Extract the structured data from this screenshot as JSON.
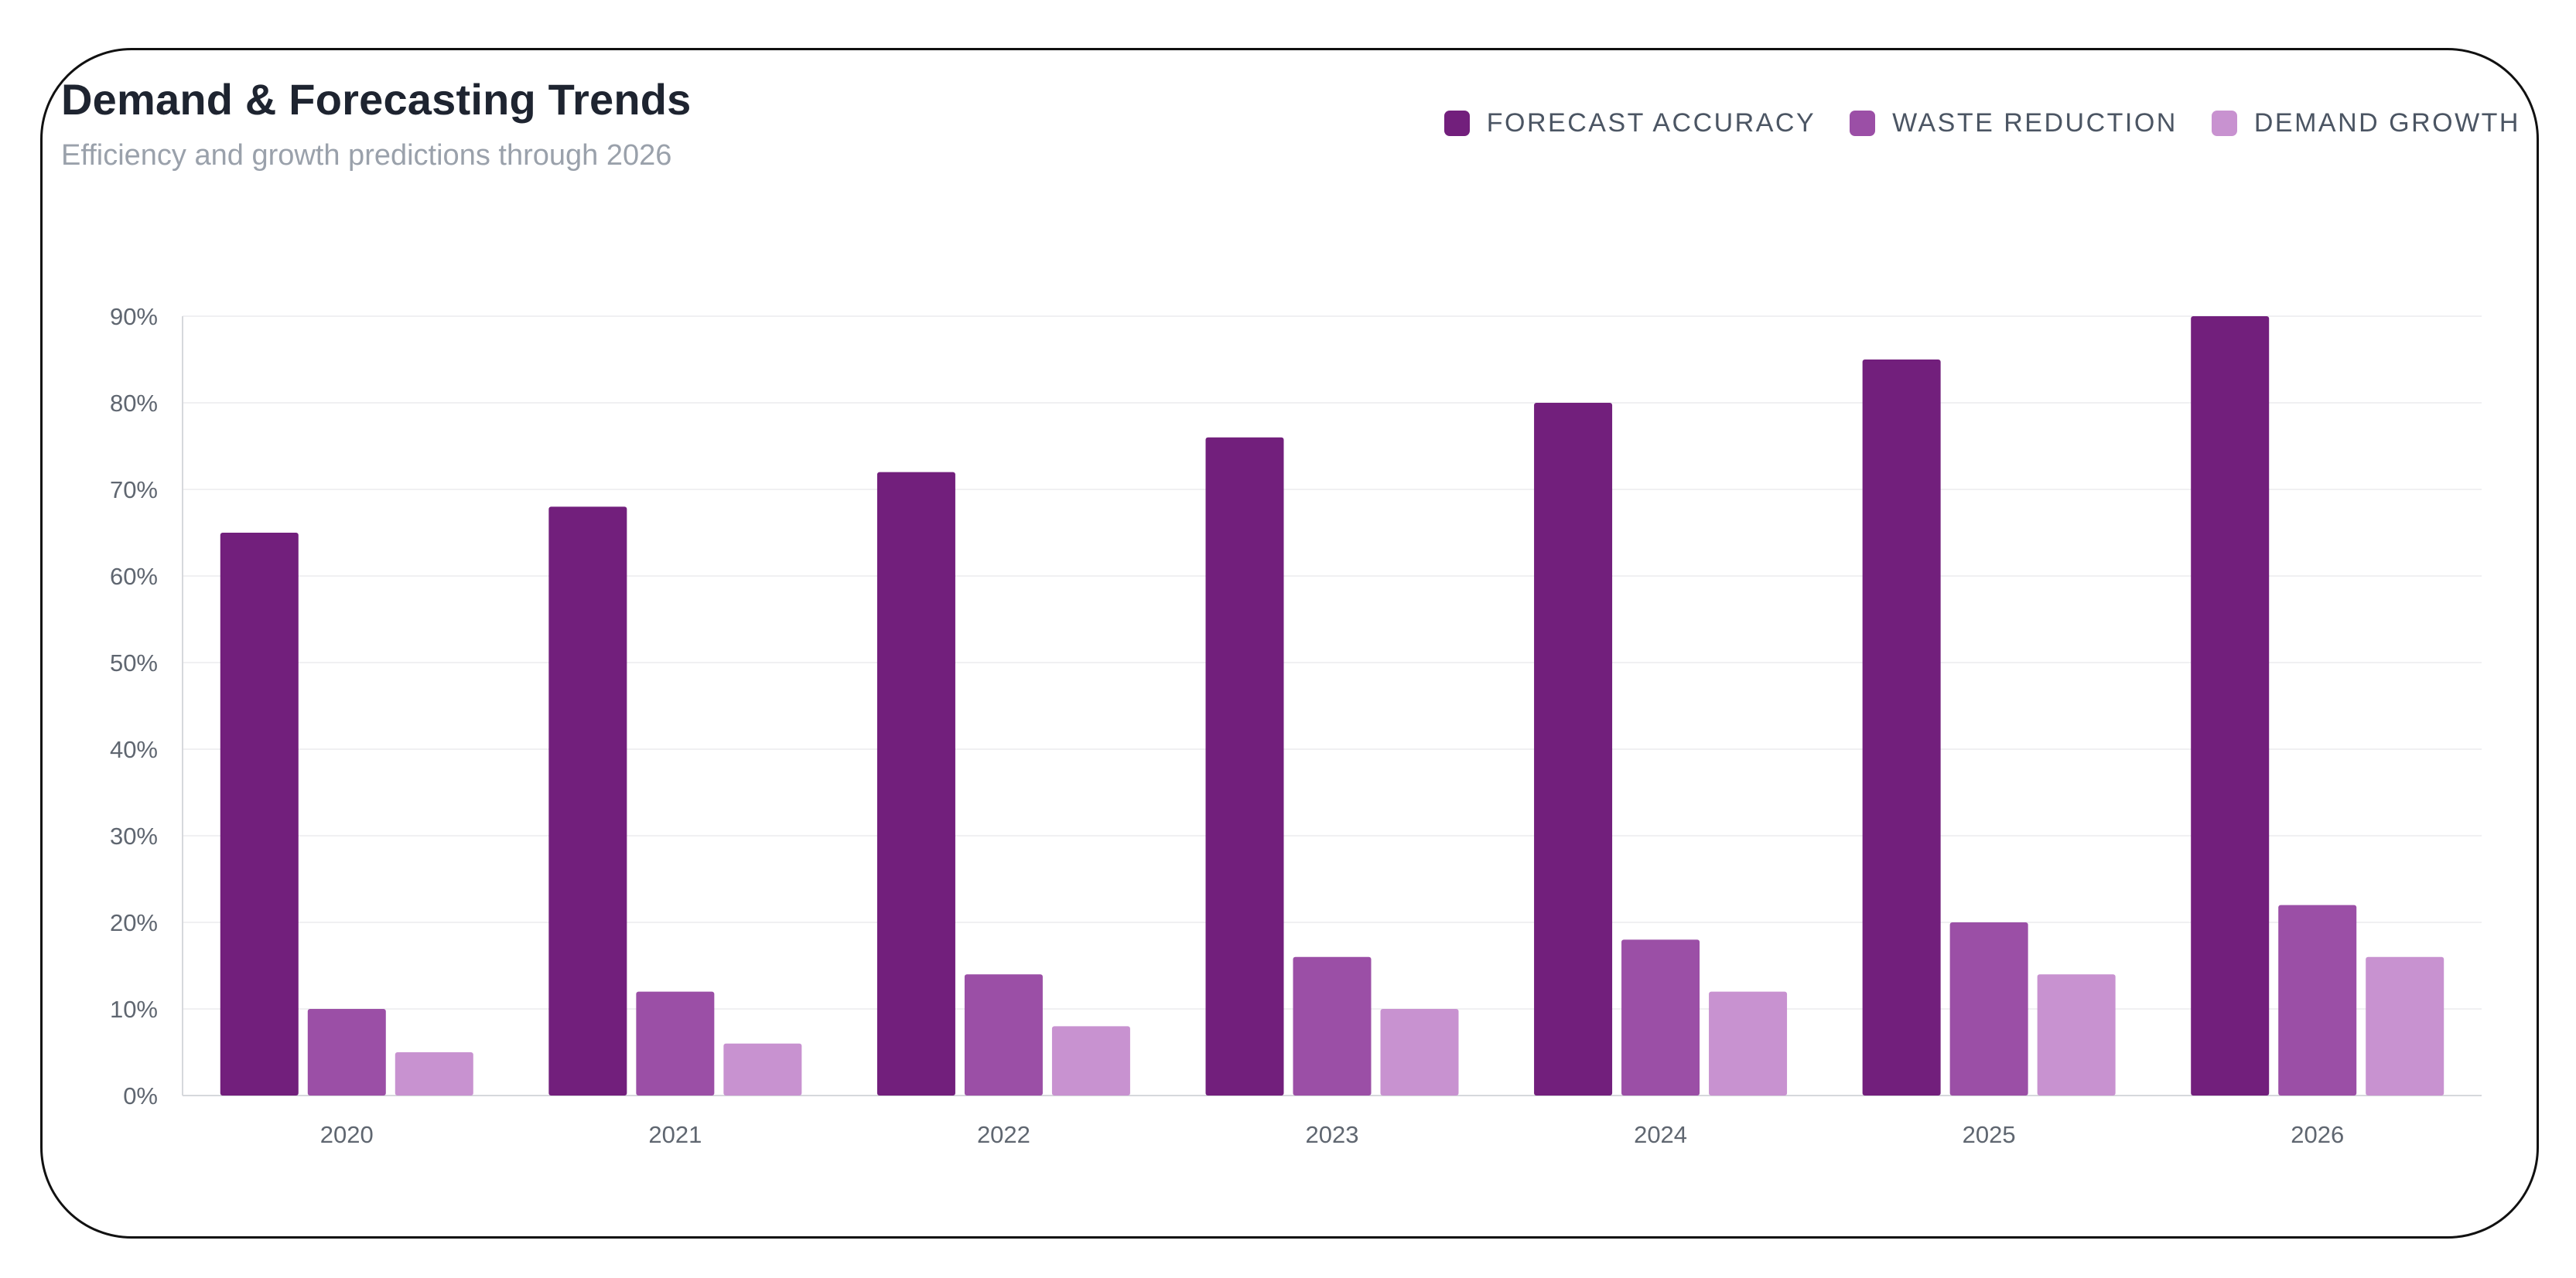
{
  "colors": {
    "forecast_accuracy": "#721f7c",
    "waste_reduction": "#9b4fa6",
    "demand_growth": "#c892d0",
    "title": "#1e2430",
    "subtitle": "#9aa1ab",
    "grid": "#f0f0f2",
    "axis": "#d6d8dc"
  },
  "chart_data": {
    "type": "bar",
    "title": "Demand & Forecasting Trends",
    "subtitle": "Efficiency and growth predictions through 2026",
    "xlabel": "",
    "ylabel": "",
    "categories": [
      "2020",
      "2021",
      "2022",
      "2023",
      "2024",
      "2025",
      "2026"
    ],
    "series": [
      {
        "name": "FORECAST ACCURACY",
        "values": [
          65,
          68,
          72,
          76,
          80,
          85,
          90
        ]
      },
      {
        "name": "WASTE REDUCTION",
        "values": [
          10,
          12,
          14,
          16,
          18,
          20,
          22
        ]
      },
      {
        "name": "DEMAND GROWTH",
        "values": [
          5,
          6,
          8,
          10,
          12,
          14,
          16
        ]
      }
    ],
    "ylim": [
      0,
      90
    ],
    "yticks": [
      "0%",
      "10%",
      "20%",
      "30%",
      "40%",
      "50%",
      "60%",
      "70%",
      "80%",
      "90%"
    ],
    "grid": true,
    "legend_position": "top-right"
  }
}
